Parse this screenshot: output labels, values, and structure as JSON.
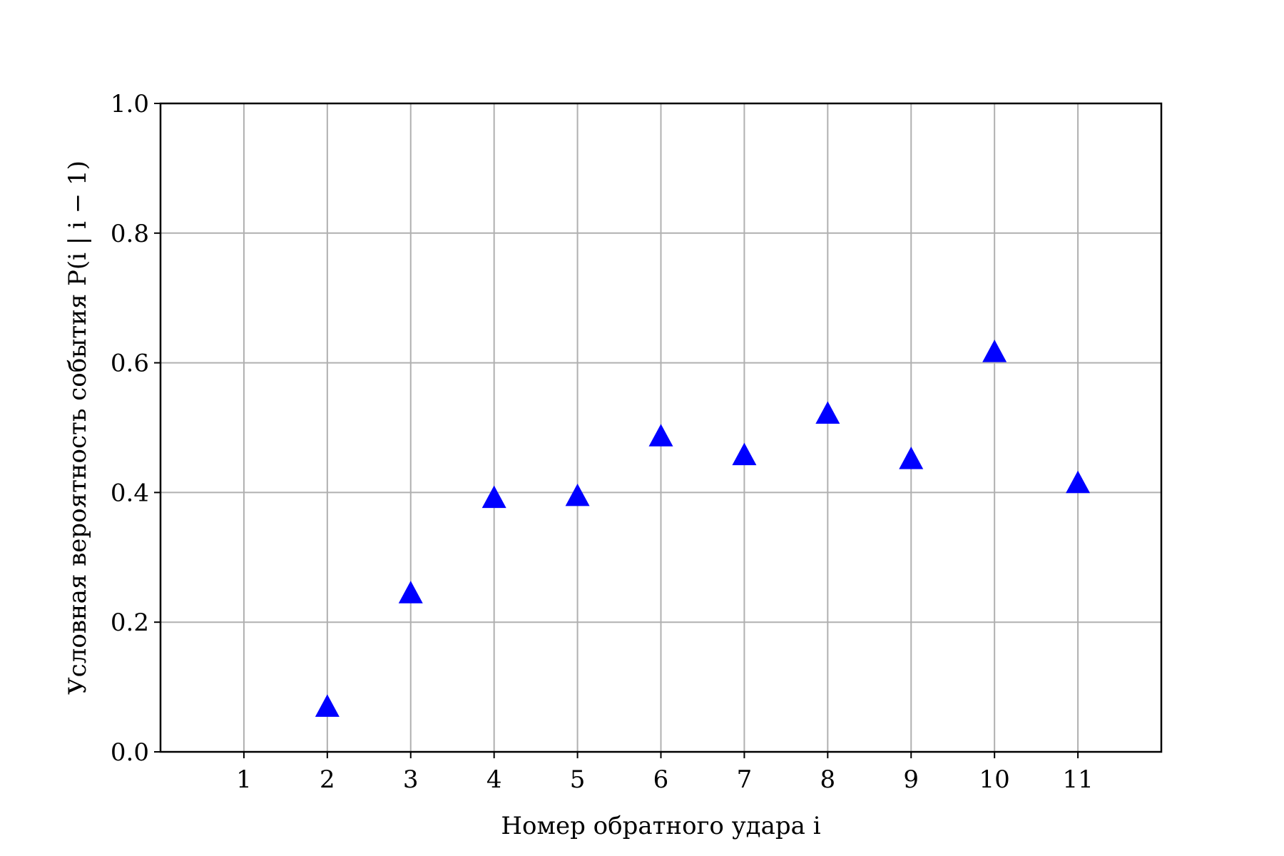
{
  "chart_data": {
    "type": "scatter",
    "title": "",
    "xlabel": "Номер обратного удара i",
    "ylabel": "Условная вероятность события P(i | i − 1)",
    "x": [
      2,
      3,
      4,
      5,
      6,
      7,
      8,
      9,
      10,
      11
    ],
    "y": [
      0.07,
      0.245,
      0.392,
      0.395,
      0.487,
      0.458,
      0.522,
      0.452,
      0.617,
      0.415
    ],
    "xlim": [
      0,
      12
    ],
    "ylim": [
      0.0,
      1.0
    ],
    "x_ticks": [
      "1",
      "2",
      "3",
      "4",
      "5",
      "6",
      "7",
      "8",
      "9",
      "10",
      "11"
    ],
    "x_tick_values": [
      1,
      2,
      3,
      4,
      5,
      6,
      7,
      8,
      9,
      10,
      11
    ],
    "y_ticks": [
      "0.0",
      "0.2",
      "0.4",
      "0.6",
      "0.8",
      "1.0"
    ],
    "y_tick_values": [
      0.0,
      0.2,
      0.4,
      0.6,
      0.8,
      1.0
    ],
    "grid": true,
    "marker": "triangle-up",
    "marker_color": "#0000ff",
    "grid_color": "#b0b0b0"
  }
}
